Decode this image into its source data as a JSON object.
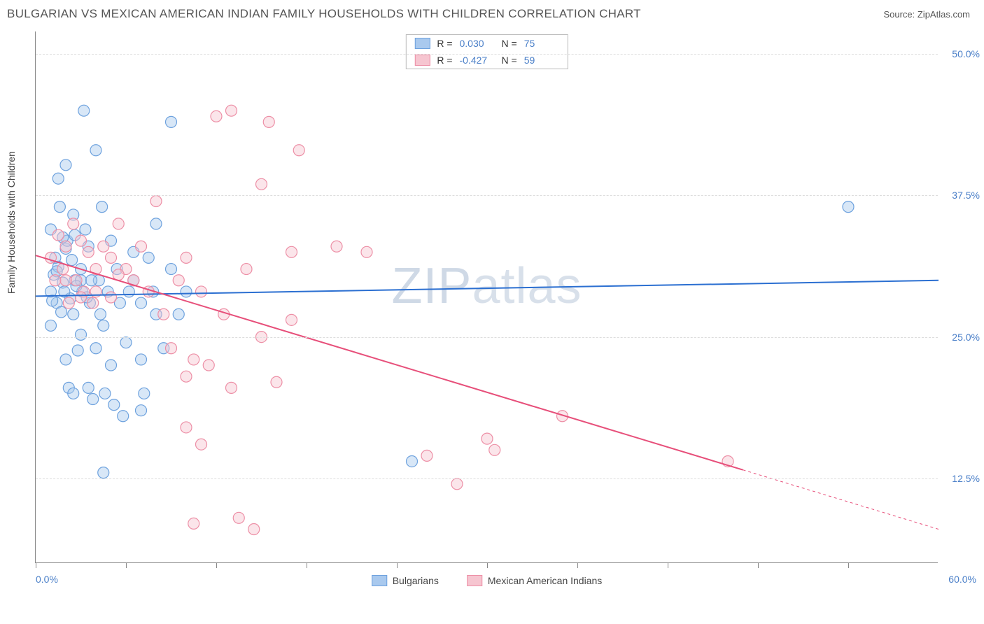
{
  "header": {
    "title": "BULGARIAN VS MEXICAN AMERICAN INDIAN FAMILY HOUSEHOLDS WITH CHILDREN CORRELATION CHART",
    "source": "Source: ZipAtlas.com"
  },
  "ylabel": "Family Households with Children",
  "watermark": "ZIPatlas",
  "chart": {
    "type": "scatter",
    "xlim": [
      0,
      60
    ],
    "ylim": [
      5,
      52
    ],
    "x_ticks": [
      0,
      6,
      12,
      18,
      24,
      30,
      36,
      42,
      48,
      54
    ],
    "y_grid": [
      12.5,
      25.0,
      37.5,
      50.0
    ],
    "y_tick_labels": [
      "12.5%",
      "25.0%",
      "37.5%",
      "50.0%"
    ],
    "xmin_label": "0.0%",
    "xmax_label": "60.0%",
    "grid_color": "#dddddd",
    "axis_color": "#888888",
    "background_color": "#ffffff",
    "marker_radius": 8,
    "marker_opacity": 0.45,
    "line_width": 2,
    "series": [
      {
        "name": "Bulgarians",
        "color_fill": "#a9c9ee",
        "color_stroke": "#6ea2de",
        "line_color": "#2b6fd1",
        "R": "0.030",
        "N": "75",
        "trend": {
          "x1": 0,
          "y1": 28.6,
          "x2": 60,
          "y2": 30.0
        },
        "points": [
          [
            1.0,
            29.0
          ],
          [
            1.2,
            30.5
          ],
          [
            1.4,
            28.0
          ],
          [
            1.5,
            31.2
          ],
          [
            1.7,
            27.2
          ],
          [
            1.8,
            29.8
          ],
          [
            2.0,
            32.8
          ],
          [
            2.1,
            33.5
          ],
          [
            2.0,
            40.2
          ],
          [
            2.3,
            28.4
          ],
          [
            2.5,
            27.0
          ],
          [
            2.5,
            35.8
          ],
          [
            2.6,
            30.0
          ],
          [
            2.8,
            23.8
          ],
          [
            3.0,
            25.2
          ],
          [
            3.0,
            31.0
          ],
          [
            3.1,
            29.0
          ],
          [
            3.2,
            45.0
          ],
          [
            3.5,
            20.5
          ],
          [
            3.5,
            33.0
          ],
          [
            3.6,
            28.0
          ],
          [
            3.8,
            19.5
          ],
          [
            4.0,
            41.5
          ],
          [
            4.0,
            24.0
          ],
          [
            4.2,
            30.0
          ],
          [
            4.4,
            36.5
          ],
          [
            4.5,
            13.0
          ],
          [
            4.5,
            26.0
          ],
          [
            4.8,
            29.0
          ],
          [
            5.0,
            33.5
          ],
          [
            5.0,
            22.5
          ],
          [
            5.2,
            19.0
          ],
          [
            5.4,
            31.0
          ],
          [
            5.6,
            28.0
          ],
          [
            5.8,
            18.0
          ],
          [
            6.0,
            24.5
          ],
          [
            6.2,
            29.0
          ],
          [
            6.5,
            30.0
          ],
          [
            6.5,
            32.5
          ],
          [
            7.0,
            28.0
          ],
          [
            7.0,
            23.0
          ],
          [
            7.2,
            20.0
          ],
          [
            7.5,
            32.0
          ],
          [
            7.8,
            29.0
          ],
          [
            8.0,
            35.0
          ],
          [
            8.0,
            27.0
          ],
          [
            8.5,
            24.0
          ],
          [
            9.0,
            44.0
          ],
          [
            9.0,
            31.0
          ],
          [
            9.5,
            27.0
          ],
          [
            10.0,
            29.0
          ],
          [
            7.0,
            18.5
          ],
          [
            1.0,
            34.5
          ],
          [
            1.3,
            32.0
          ],
          [
            1.6,
            36.5
          ],
          [
            1.5,
            39.0
          ],
          [
            2.0,
            23.0
          ],
          [
            2.2,
            20.5
          ],
          [
            1.0,
            26.0
          ],
          [
            1.8,
            33.8
          ],
          [
            2.4,
            31.8
          ],
          [
            2.6,
            34.0
          ],
          [
            3.0,
            30.0
          ],
          [
            3.3,
            34.5
          ],
          [
            3.7,
            30.0
          ],
          [
            4.3,
            27.0
          ],
          [
            1.1,
            28.2
          ],
          [
            1.4,
            30.8
          ],
          [
            1.9,
            29.0
          ],
          [
            2.7,
            29.5
          ],
          [
            3.4,
            28.5
          ],
          [
            25.0,
            14.0
          ],
          [
            54.0,
            36.5
          ],
          [
            2.5,
            20.0
          ],
          [
            4.6,
            20.0
          ]
        ]
      },
      {
        "name": "Mexican American Indians",
        "color_fill": "#f6c5d0",
        "color_stroke": "#ed8fa6",
        "line_color": "#e74f7a",
        "R": "-0.427",
        "N": "59",
        "trend": {
          "x1": 0,
          "y1": 32.2,
          "x2": 60,
          "y2": 8.0
        },
        "trend_dash_after_x": 47,
        "points": [
          [
            1.0,
            32.0
          ],
          [
            1.3,
            30.0
          ],
          [
            1.5,
            34.0
          ],
          [
            1.8,
            31.0
          ],
          [
            2.0,
            33.0
          ],
          [
            2.2,
            28.0
          ],
          [
            2.5,
            35.0
          ],
          [
            2.7,
            30.0
          ],
          [
            3.0,
            33.5
          ],
          [
            3.2,
            29.0
          ],
          [
            3.5,
            32.5
          ],
          [
            3.8,
            28.0
          ],
          [
            4.0,
            31.0
          ],
          [
            4.5,
            33.0
          ],
          [
            5.0,
            28.5
          ],
          [
            5.0,
            32.0
          ],
          [
            5.5,
            35.0
          ],
          [
            6.0,
            31.0
          ],
          [
            6.5,
            30.0
          ],
          [
            7.0,
            33.0
          ],
          [
            7.5,
            29.0
          ],
          [
            8.0,
            37.0
          ],
          [
            8.5,
            27.0
          ],
          [
            9.0,
            24.0
          ],
          [
            9.5,
            30.0
          ],
          [
            10.0,
            32.0
          ],
          [
            10.0,
            21.5
          ],
          [
            10.5,
            23.0
          ],
          [
            11.0,
            29.0
          ],
          [
            11.5,
            22.5
          ],
          [
            12.0,
            44.5
          ],
          [
            12.5,
            27.0
          ],
          [
            13.0,
            45.0
          ],
          [
            13.0,
            20.5
          ],
          [
            10.0,
            17.0
          ],
          [
            11.0,
            15.5
          ],
          [
            14.0,
            31.0
          ],
          [
            15.0,
            38.5
          ],
          [
            15.0,
            25.0
          ],
          [
            15.5,
            44.0
          ],
          [
            16.0,
            21.0
          ],
          [
            17.0,
            32.5
          ],
          [
            17.0,
            26.5
          ],
          [
            17.5,
            41.5
          ],
          [
            13.5,
            9.0
          ],
          [
            14.5,
            8.0
          ],
          [
            10.5,
            8.5
          ],
          [
            20.0,
            33.0
          ],
          [
            22.0,
            32.5
          ],
          [
            26.0,
            14.5
          ],
          [
            28.0,
            12.0
          ],
          [
            30.0,
            16.0
          ],
          [
            30.5,
            15.0
          ],
          [
            35.0,
            18.0
          ],
          [
            46.0,
            14.0
          ],
          [
            2.0,
            30.0
          ],
          [
            3.0,
            28.5
          ],
          [
            4.0,
            29.0
          ],
          [
            5.5,
            30.5
          ]
        ]
      }
    ]
  },
  "legend_bottom": [
    {
      "label": "Bulgarians",
      "fill": "#a9c9ee",
      "stroke": "#6ea2de"
    },
    {
      "label": "Mexican American Indians",
      "fill": "#f6c5d0",
      "stroke": "#ed8fa6"
    }
  ]
}
